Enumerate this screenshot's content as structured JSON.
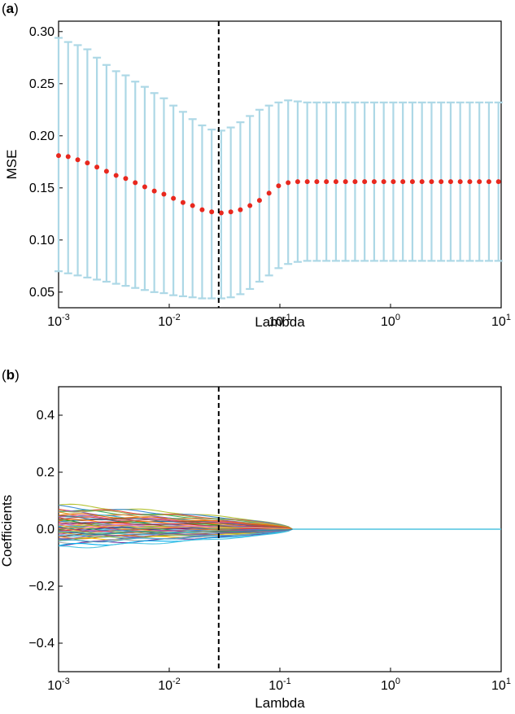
{
  "panels": [
    {
      "label": "(a)",
      "label_prefix": "(",
      "label_letter": "a",
      "label_suffix": ")"
    },
    {
      "label": "(b)",
      "label_prefix": "(",
      "label_letter": "b",
      "label_suffix": ")"
    }
  ],
  "colors": {
    "errorbar": "#add8e6",
    "mse_point": "#e8281e",
    "vline": "#000000",
    "zero_line": "#4fc4e0"
  },
  "chart_data": [
    {
      "type": "scatter",
      "panel": "a",
      "xlabel": "Lambda",
      "ylabel": "MSE",
      "x_scale": "log",
      "xlim": [
        0.001,
        10
      ],
      "ylim": [
        0.035,
        0.31
      ],
      "x_ticks": [
        {
          "value": 0.001,
          "base": "10",
          "exp": "-3"
        },
        {
          "value": 0.01,
          "base": "10",
          "exp": "-2"
        },
        {
          "value": 0.1,
          "base": "10",
          "exp": "-1"
        },
        {
          "value": 1,
          "base": "10",
          "exp": "0"
        },
        {
          "value": 10,
          "base": "10",
          "exp": "1"
        }
      ],
      "y_ticks": [
        "0.05",
        "0.10",
        "0.15",
        "0.20",
        "0.25",
        "0.30"
      ],
      "y_tick_values": [
        0.05,
        0.1,
        0.15,
        0.2,
        0.25,
        0.3
      ],
      "selected_lambda": 0.028,
      "series": [
        {
          "x": [
            0.001,
            0.00122,
            0.00149,
            0.00182,
            0.00222,
            0.00271,
            0.00331,
            0.00404,
            0.00493,
            0.00601,
            0.00733,
            0.00895,
            0.01091,
            0.01332,
            0.01625,
            0.01983,
            0.02419,
            0.02951,
            0.03601,
            0.04394,
            0.05361,
            0.06541,
            0.0798,
            0.09737,
            0.1188,
            0.1449,
            0.1768,
            0.2157,
            0.2632,
            0.3212,
            0.3919,
            0.4781,
            0.5834,
            0.7119,
            0.8685,
            1.0597,
            1.2929,
            1.5775,
            1.9247,
            2.3484,
            2.8653,
            3.496,
            4.2655,
            5.2045,
            6.3501,
            7.7479,
            9.4534
          ],
          "mse": [
            0.181,
            0.18,
            0.177,
            0.174,
            0.17,
            0.166,
            0.162,
            0.159,
            0.155,
            0.151,
            0.147,
            0.144,
            0.14,
            0.136,
            0.133,
            0.129,
            0.127,
            0.126,
            0.127,
            0.129,
            0.133,
            0.138,
            0.145,
            0.152,
            0.155,
            0.156,
            0.156,
            0.156,
            0.156,
            0.156,
            0.156,
            0.156,
            0.156,
            0.156,
            0.156,
            0.156,
            0.156,
            0.156,
            0.156,
            0.156,
            0.156,
            0.156,
            0.156,
            0.156,
            0.156,
            0.156,
            0.156
          ],
          "upper": [
            0.294,
            0.29,
            0.287,
            0.283,
            0.275,
            0.268,
            0.262,
            0.258,
            0.252,
            0.247,
            0.241,
            0.236,
            0.229,
            0.223,
            0.216,
            0.21,
            0.206,
            0.205,
            0.208,
            0.213,
            0.219,
            0.225,
            0.229,
            0.232,
            0.234,
            0.233,
            0.232,
            0.232,
            0.232,
            0.232,
            0.232,
            0.232,
            0.232,
            0.232,
            0.232,
            0.232,
            0.232,
            0.232,
            0.232,
            0.232,
            0.232,
            0.232,
            0.232,
            0.232,
            0.232,
            0.232,
            0.232
          ],
          "lower": [
            0.07,
            0.068,
            0.066,
            0.064,
            0.062,
            0.06,
            0.058,
            0.056,
            0.054,
            0.052,
            0.05,
            0.049,
            0.047,
            0.046,
            0.045,
            0.044,
            0.044,
            0.044,
            0.045,
            0.048,
            0.053,
            0.06,
            0.066,
            0.073,
            0.077,
            0.079,
            0.08,
            0.08,
            0.08,
            0.08,
            0.08,
            0.08,
            0.08,
            0.08,
            0.08,
            0.08,
            0.08,
            0.08,
            0.08,
            0.08,
            0.08,
            0.08,
            0.08,
            0.08,
            0.08,
            0.08,
            0.08
          ]
        }
      ]
    },
    {
      "type": "line",
      "panel": "b",
      "xlabel": "Lambda",
      "ylabel": "Coefficients",
      "x_scale": "log",
      "xlim": [
        0.001,
        10
      ],
      "ylim": [
        -0.5,
        0.5
      ],
      "x_ticks": [
        {
          "value": 0.001,
          "base": "10",
          "exp": "-3"
        },
        {
          "value": 0.01,
          "base": "10",
          "exp": "-2"
        },
        {
          "value": 0.1,
          "base": "10",
          "exp": "-1"
        },
        {
          "value": 1,
          "base": "10",
          "exp": "0"
        },
        {
          "value": 10,
          "base": "10",
          "exp": "1"
        }
      ],
      "y_ticks": [
        "−0.4",
        "−0.2",
        "0.0",
        "0.2",
        "0.4"
      ],
      "y_tick_values": [
        -0.4,
        -0.2,
        0.0,
        0.2,
        0.4
      ],
      "selected_lambda": 0.028,
      "coefficient_paths": {
        "lambda_zero": 0.13,
        "start_values": [
          0.085,
          0.078,
          0.072,
          0.066,
          0.06,
          0.055,
          0.05,
          0.046,
          0.042,
          0.038,
          0.034,
          0.03,
          0.027,
          0.024,
          0.021,
          0.018,
          0.015,
          0.012,
          0.009,
          0.006,
          0.003,
          0.001,
          -0.002,
          -0.005,
          -0.008,
          -0.011,
          -0.014,
          -0.017,
          -0.02,
          -0.023,
          -0.026,
          -0.03,
          -0.034,
          -0.038,
          -0.042,
          -0.047,
          -0.052,
          -0.058,
          -0.065,
          0.068,
          0.04,
          -0.045,
          0.01,
          -0.028,
          0.052,
          -0.015
        ],
        "colors": [
          "#b5c233",
          "#3f8dd6",
          "#e8483b",
          "#41b06a",
          "#8e56c2",
          "#f0a02a",
          "#2bbad0",
          "#d94f9e",
          "#6c6c6c",
          "#a0522d",
          "#1f77b4",
          "#ff7f0e",
          "#2ca02c",
          "#d62728",
          "#9467bd",
          "#8c564b",
          "#e377c2",
          "#7f7f7f",
          "#bcbd22",
          "#17becf",
          "#4b3c8f",
          "#c7254e",
          "#3a9e57",
          "#e07b39",
          "#5a7fd6",
          "#b03a8a",
          "#7db84a",
          "#d6b32e",
          "#3cc0c8",
          "#8f4a2e",
          "#5b9bd5",
          "#ed7d31",
          "#70ad47",
          "#ffc000",
          "#4472c4",
          "#a5a5a5",
          "#7030a0",
          "#00b0f0",
          "#4fc4e0",
          "#9bbb59",
          "#c0504d",
          "#4bacc6",
          "#f79646",
          "#8064a2",
          "#e46c0a",
          "#31859c"
        ]
      }
    }
  ]
}
